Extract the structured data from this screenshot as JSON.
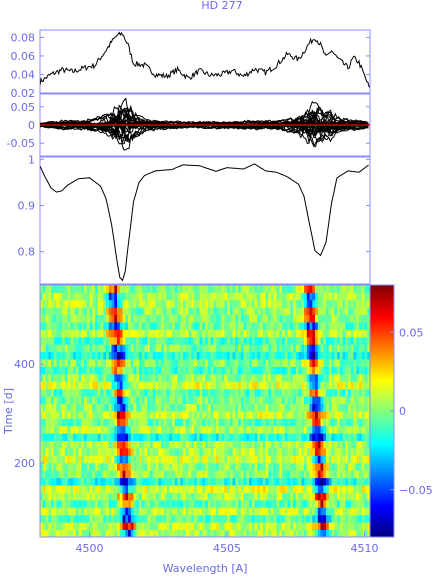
{
  "colors": {
    "axis": "#8b8bff",
    "text": "#6a6ae6",
    "series": "#000000",
    "mean_line": "#cc0000"
  },
  "chart_data": [
    {
      "type": "line",
      "title": "HD 277",
      "xlim": [
        4498.2,
        4510.2
      ],
      "ylim": [
        0.02,
        0.088
      ],
      "yticks": [
        0.02,
        0.04,
        0.06,
        0.08
      ],
      "ytick_labels": [
        "0.02",
        "0.04",
        "0.06",
        "0.08"
      ],
      "series": [
        {
          "x": [
            4498.2,
            4498.6,
            4499.0,
            4499.4,
            4499.8,
            4500.2,
            4500.6,
            4500.8,
            4501.0,
            4501.2,
            4501.4,
            4501.6,
            4502.0,
            4502.4,
            4502.8,
            4503.2,
            4503.6,
            4504.0,
            4504.4,
            4504.8,
            4505.2,
            4505.6,
            4506.0,
            4506.4,
            4506.8,
            4507.2,
            4507.6,
            4508.0,
            4508.2,
            4508.4,
            4508.6,
            4508.8,
            4509.0,
            4509.4,
            4509.6,
            4509.8,
            4510.2
          ],
          "y": [
            0.032,
            0.04,
            0.045,
            0.043,
            0.047,
            0.05,
            0.066,
            0.075,
            0.082,
            0.084,
            0.072,
            0.052,
            0.05,
            0.04,
            0.038,
            0.045,
            0.036,
            0.044,
            0.039,
            0.04,
            0.044,
            0.038,
            0.046,
            0.042,
            0.05,
            0.062,
            0.056,
            0.074,
            0.08,
            0.072,
            0.058,
            0.066,
            0.058,
            0.047,
            0.058,
            0.053,
            0.024
          ]
        }
      ]
    },
    {
      "type": "line",
      "xlim": [
        4498.2,
        4510.2
      ],
      "ylim": [
        -0.085,
        0.085
      ],
      "yticks": [
        -0.05,
        0,
        0.05
      ],
      "ytick_labels": [
        "-0.05",
        "0",
        "0.05"
      ],
      "profile": {
        "x": [
          4498.2,
          4499.0,
          4499.8,
          4500.4,
          4500.8,
          4501.0,
          4501.2,
          4501.4,
          4501.6,
          4502.0,
          4503.0,
          4504.0,
          4505.0,
          4506.0,
          4507.0,
          4507.6,
          4507.8,
          4508.0,
          4508.2,
          4508.4,
          4508.6,
          4508.8,
          4509.0,
          4509.6,
          4510.2
        ],
        "y": [
          0.005,
          0.01,
          0.012,
          0.018,
          0.032,
          0.045,
          0.06,
          0.055,
          0.03,
          0.015,
          0.008,
          0.008,
          0.008,
          0.01,
          0.012,
          0.02,
          0.035,
          0.05,
          0.055,
          0.04,
          0.03,
          0.035,
          0.02,
          0.012,
          0.006
        ]
      },
      "mean_line": 0
    },
    {
      "type": "line",
      "xlim": [
        4498.2,
        4510.2
      ],
      "ylim": [
        0.73,
        1.005
      ],
      "yticks": [
        0.8,
        0.9,
        1.0
      ],
      "ytick_labels": [
        "0.8",
        "0.9",
        "1"
      ],
      "series": [
        {
          "x": [
            4498.2,
            4498.4,
            4498.6,
            4498.8,
            4499.0,
            4499.2,
            4499.6,
            4500.0,
            4500.4,
            4500.6,
            4500.8,
            4501.0,
            4501.1,
            4501.2,
            4501.3,
            4501.4,
            4501.6,
            4501.8,
            4502.0,
            4502.4,
            4503.0,
            4503.4,
            4504.0,
            4504.6,
            4505.0,
            4505.6,
            4506.0,
            4506.4,
            4506.8,
            4507.2,
            4507.6,
            4507.8,
            4508.0,
            4508.2,
            4508.4,
            4508.6,
            4508.8,
            4509.0,
            4509.4,
            4509.8,
            4510.2
          ],
          "y": [
            0.985,
            0.96,
            0.938,
            0.929,
            0.932,
            0.944,
            0.958,
            0.96,
            0.942,
            0.915,
            0.86,
            0.78,
            0.744,
            0.738,
            0.758,
            0.81,
            0.908,
            0.95,
            0.965,
            0.975,
            0.978,
            0.988,
            0.986,
            0.974,
            0.982,
            0.979,
            0.99,
            0.975,
            0.972,
            0.962,
            0.946,
            0.92,
            0.86,
            0.802,
            0.792,
            0.82,
            0.905,
            0.96,
            0.975,
            0.972,
            0.99
          ]
        }
      ]
    },
    {
      "type": "heatmap",
      "xlim": [
        4498.2,
        4510.2
      ],
      "ylim": [
        50,
        560
      ],
      "xticks": [
        4500,
        4505,
        4510
      ],
      "xtick_labels": [
        "4500",
        "4505",
        "4510"
      ],
      "yticks": [
        200,
        400
      ],
      "ytick_labels": [
        "200",
        "400"
      ],
      "xlabel": "Wavelength [A]",
      "ylabel": "Time [d]",
      "colorbar": {
        "range": [
          -0.08,
          0.08
        ],
        "ticks": [
          -0.05,
          0,
          0.05
        ],
        "tick_labels": [
          "−0.05",
          "0",
          "0.05"
        ],
        "colormap": "jet"
      },
      "features": [
        {
          "center": 4501.1,
          "slope_per_day": -0.0018,
          "anchor_time": 300,
          "width": 0.25
        },
        {
          "center": 4508.2,
          "slope_per_day": -0.0018,
          "anchor_time": 300,
          "width": 0.25
        }
      ]
    }
  ]
}
